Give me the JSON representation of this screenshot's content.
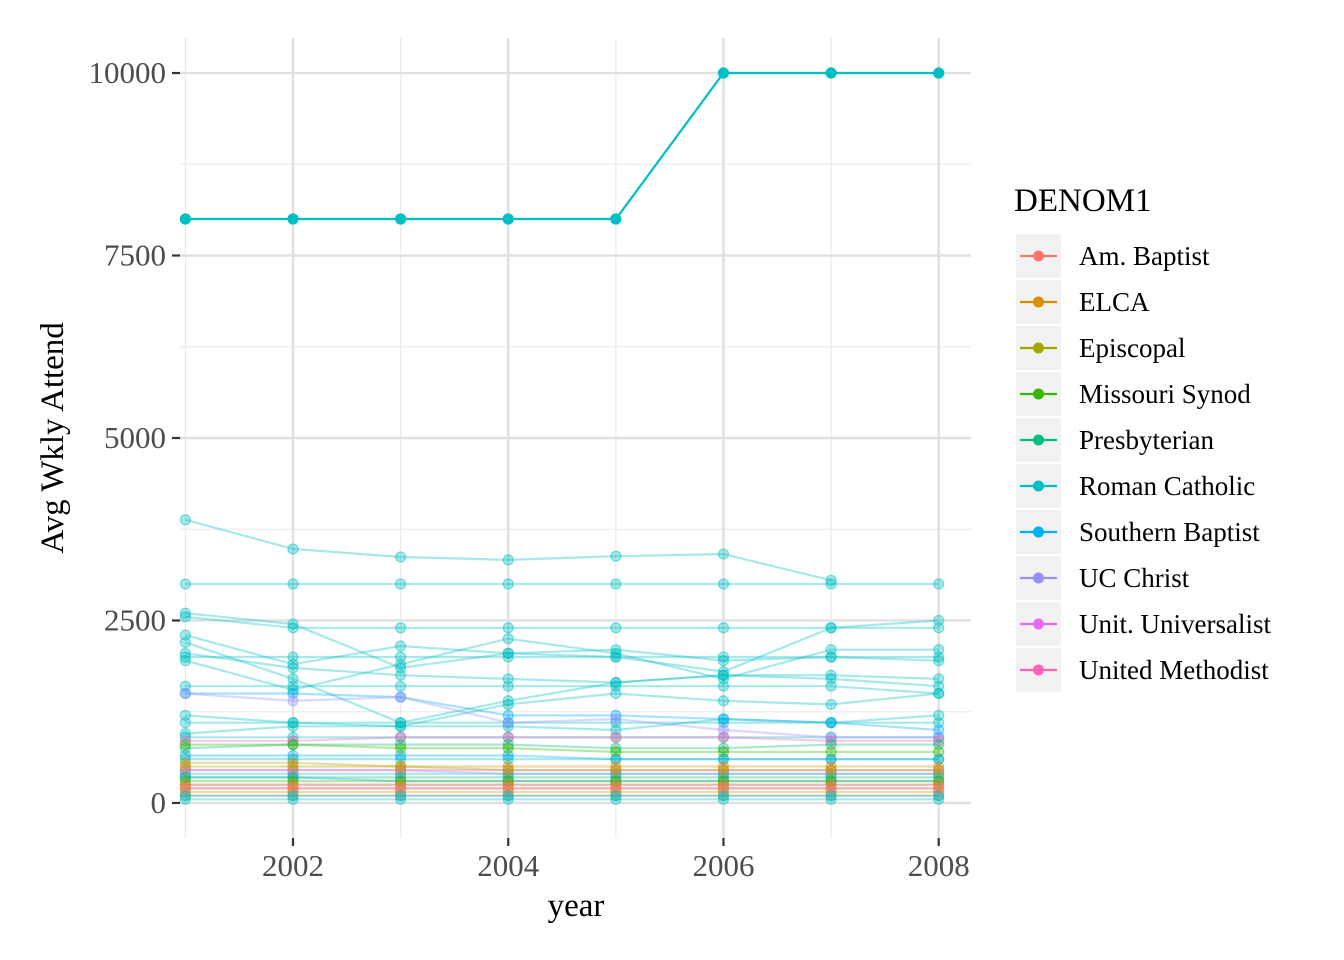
{
  "chart_data": {
    "type": "line",
    "title": "",
    "xlabel": "year",
    "ylabel": "Avg Wkly Attend",
    "xlim": [
      2000.95,
      2008.3
    ],
    "ylim": [
      -480,
      10480
    ],
    "x_ticks": [
      2002,
      2004,
      2006,
      2008
    ],
    "x_tick_labels": [
      "2002",
      "2004",
      "2006",
      "2008"
    ],
    "y_ticks": [
      0,
      2500,
      5000,
      7500,
      10000
    ],
    "y_tick_labels": [
      "0",
      "2500",
      "5000",
      "7500",
      "10000"
    ],
    "grid": true,
    "background": "#ffffff",
    "legend": {
      "title": "DENOM1",
      "placement": "right",
      "entries": [
        {
          "name": "Am. Baptist",
          "color": "#F8766D"
        },
        {
          "name": "ELCA",
          "color": "#D89000"
        },
        {
          "name": "Episcopal",
          "color": "#A3A500"
        },
        {
          "name": "Missouri Synod",
          "color": "#39B600"
        },
        {
          "name": "Presbyterian",
          "color": "#00BF7D"
        },
        {
          "name": "Roman Catholic",
          "color": "#00BFC4"
        },
        {
          "name": "Southern Baptist",
          "color": "#00B0F6"
        },
        {
          "name": "UC Christ",
          "color": "#9590FF"
        },
        {
          "name": "Unit. Universalist",
          "color": "#E76BF3"
        },
        {
          "name": "United Methodist",
          "color": "#FF62BC"
        }
      ]
    },
    "x": [
      2001,
      2002,
      2003,
      2004,
      2005,
      2006,
      2007,
      2008
    ],
    "highlight_series": [
      {
        "denomination": "Roman Catholic",
        "values": [
          8000,
          8000,
          8000,
          8000,
          8000,
          10000,
          10000,
          10000
        ]
      }
    ],
    "series": [
      {
        "denomination": "Roman Catholic",
        "values": [
          3880,
          3480,
          3370,
          3330,
          3380,
          3410,
          3050,
          null
        ]
      },
      {
        "denomination": "Roman Catholic",
        "values": [
          3000,
          3000,
          3000,
          3000,
          3000,
          3000,
          3000,
          3000
        ]
      },
      {
        "denomination": "Roman Catholic",
        "values": [
          2600,
          2450,
          1850,
          2050,
          2000,
          1800,
          2400,
          2500
        ]
      },
      {
        "denomination": "Roman Catholic",
        "values": [
          2550,
          2400,
          2400,
          2400,
          2400,
          2400,
          2400,
          2400
        ]
      },
      {
        "denomination": "Roman Catholic",
        "values": [
          2300,
          1900,
          2150,
          2050,
          2100,
          1950,
          2000,
          1950
        ]
      },
      {
        "denomination": "Roman Catholic",
        "values": [
          2200,
          1700,
          1100,
          1400,
          1650,
          1750,
          1700,
          1600
        ]
      },
      {
        "denomination": "Roman Catholic",
        "values": [
          2050,
          1850,
          1750,
          1700,
          1650,
          1750,
          1750,
          1700
        ]
      },
      {
        "denomination": "Roman Catholic",
        "values": [
          2000,
          2000,
          2000,
          2000,
          2000,
          2000,
          2000,
          2000
        ]
      },
      {
        "denomination": "Roman Catholic",
        "values": [
          1950,
          1550,
          1900,
          2250,
          2050,
          1700,
          2100,
          2100
        ]
      },
      {
        "denomination": "Roman Catholic",
        "values": [
          1600,
          1600,
          1600,
          1600,
          1600,
          1600,
          1600,
          1500
        ]
      },
      {
        "denomination": "Roman Catholic",
        "values": [
          1200,
          1100,
          1050,
          1350,
          1500,
          1400,
          1350,
          1500
        ]
      },
      {
        "denomination": "Roman Catholic",
        "values": [
          1100,
          1100,
          1100,
          1100,
          1100,
          1100,
          1100,
          1100
        ]
      },
      {
        "denomination": "Roman Catholic",
        "values": [
          950,
          1050,
          1050,
          1050,
          1000,
          1150,
          1100,
          1200
        ]
      },
      {
        "denomination": "Roman Catholic",
        "values": [
          900,
          900,
          900,
          900,
          900,
          900,
          900,
          900
        ]
      },
      {
        "denomination": "Roman Catholic",
        "values": [
          600,
          600,
          600,
          600,
          600,
          600,
          600,
          600
        ]
      },
      {
        "denomination": "Roman Catholic",
        "values": [
          400,
          400,
          400,
          400,
          400,
          400,
          400,
          400
        ]
      },
      {
        "denomination": "Southern Baptist",
        "values": [
          1500,
          1500,
          1450,
          1200,
          1200,
          1150,
          1100,
          1000
        ]
      },
      {
        "denomination": "Southern Baptist",
        "values": [
          650,
          650,
          650,
          650,
          600,
          600,
          600,
          600
        ]
      },
      {
        "denomination": "Southern Baptist",
        "values": [
          350,
          350,
          300,
          300,
          300,
          300,
          300,
          300
        ]
      },
      {
        "denomination": "UC Christ",
        "values": [
          1500,
          1400,
          1450,
          1100,
          1150,
          1000,
          900,
          900
        ]
      },
      {
        "denomination": "UC Christ",
        "values": [
          450,
          450,
          450,
          400,
          400,
          400,
          400,
          400
        ]
      },
      {
        "denomination": "Unit. Universalist",
        "values": [
          250,
          250,
          250,
          250,
          250,
          250,
          250,
          250
        ]
      },
      {
        "denomination": "United Methodist",
        "values": [
          850,
          850,
          900,
          900,
          900,
          900,
          850,
          850
        ]
      },
      {
        "denomination": "United Methodist",
        "values": [
          450,
          450,
          450,
          450,
          450,
          450,
          450,
          450
        ]
      },
      {
        "denomination": "United Methodist",
        "values": [
          200,
          200,
          200,
          200,
          200,
          200,
          200,
          200
        ]
      },
      {
        "denomination": "Presbyterian",
        "values": [
          750,
          800,
          800,
          800,
          750,
          750,
          800,
          800
        ]
      },
      {
        "denomination": "Presbyterian",
        "values": [
          350,
          350,
          350,
          350,
          350,
          350,
          350,
          350
        ]
      },
      {
        "denomination": "Missouri Synod",
        "values": [
          800,
          800,
          750,
          750,
          700,
          700,
          700,
          700
        ]
      },
      {
        "denomination": "Missouri Synod",
        "values": [
          300,
          300,
          300,
          300,
          300,
          300,
          300,
          300
        ]
      },
      {
        "denomination": "Episcopal",
        "values": [
          500,
          500,
          500,
          450,
          450,
          450,
          450,
          450
        ]
      },
      {
        "denomination": "Episcopal",
        "values": [
          150,
          150,
          150,
          150,
          150,
          150,
          150,
          150
        ]
      },
      {
        "denomination": "ELCA",
        "values": [
          550,
          550,
          500,
          500,
          500,
          500,
          500,
          500
        ]
      },
      {
        "denomination": "ELCA",
        "values": [
          250,
          250,
          250,
          250,
          250,
          250,
          250,
          250
        ]
      },
      {
        "denomination": "Am. Baptist",
        "values": [
          200,
          200,
          200,
          200,
          200,
          200,
          200,
          200
        ]
      },
      {
        "denomination": "Am. Baptist",
        "values": [
          100,
          100,
          100,
          100,
          100,
          100,
          100,
          100
        ]
      },
      {
        "denomination": "Roman Catholic",
        "values": [
          100,
          100,
          100,
          100,
          100,
          100,
          100,
          100
        ]
      },
      {
        "denomination": "Roman Catholic",
        "values": [
          50,
          50,
          50,
          50,
          50,
          50,
          50,
          50
        ]
      }
    ]
  }
}
